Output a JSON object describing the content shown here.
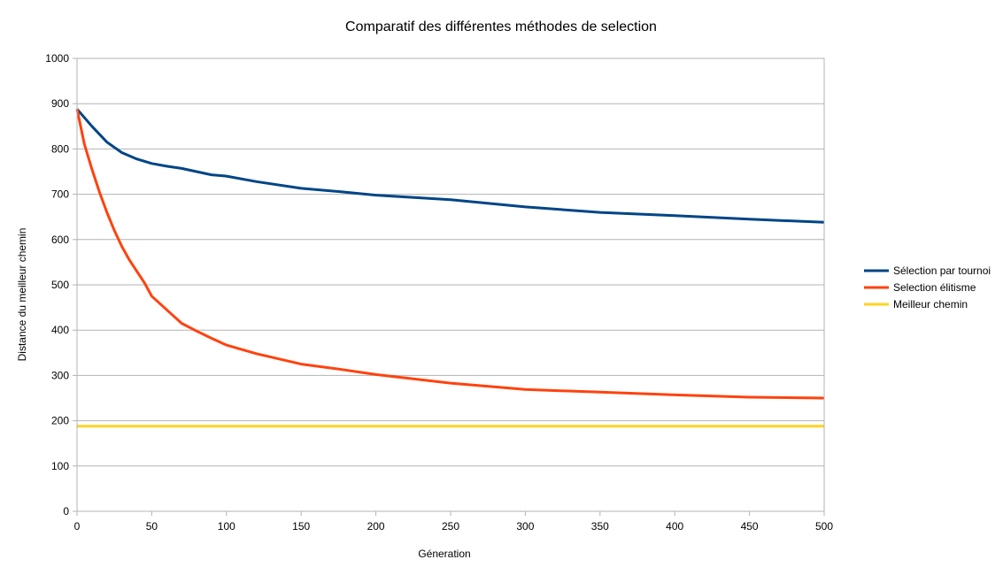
{
  "chart_data": {
    "type": "line",
    "title": "Comparatif des différentes méthodes de selection",
    "xlabel": "Géneration",
    "ylabel": "Distance du meilleur chemin",
    "xlim": [
      0,
      500
    ],
    "ylim": [
      0,
      1000
    ],
    "x_ticks": [
      "0",
      "50",
      "100",
      "150",
      "200",
      "250",
      "300",
      "350",
      "400",
      "450",
      "500"
    ],
    "y_ticks": [
      "0",
      "100",
      "200",
      "300",
      "400",
      "500",
      "600",
      "700",
      "800",
      "900",
      "1000"
    ],
    "grid": "horizontal",
    "legend_position": "right",
    "series": [
      {
        "name": "Sélection par tournoi",
        "color": "#004586",
        "x": [
          0,
          10,
          20,
          30,
          40,
          50,
          60,
          70,
          80,
          90,
          100,
          120,
          150,
          175,
          200,
          250,
          300,
          350,
          400,
          450,
          500
        ],
        "y": [
          888,
          850,
          815,
          792,
          778,
          768,
          762,
          757,
          750,
          743,
          740,
          728,
          713,
          706,
          698,
          688,
          672,
          660,
          653,
          645,
          638
        ]
      },
      {
        "name": "Selection élitisme",
        "color": "#ff420e",
        "x": [
          0,
          5,
          10,
          15,
          20,
          25,
          30,
          35,
          40,
          45,
          50,
          60,
          70,
          80,
          90,
          100,
          120,
          150,
          175,
          200,
          250,
          300,
          350,
          400,
          450,
          500
        ],
        "y": [
          888,
          810,
          755,
          705,
          660,
          620,
          585,
          555,
          530,
          505,
          475,
          445,
          415,
          398,
          382,
          367,
          348,
          325,
          314,
          302,
          283,
          269,
          263,
          257,
          252,
          250
        ]
      },
      {
        "name": "Meilleur chemin",
        "color": "#ffd320",
        "x": [
          0,
          500
        ],
        "y": [
          188,
          188
        ]
      }
    ]
  }
}
